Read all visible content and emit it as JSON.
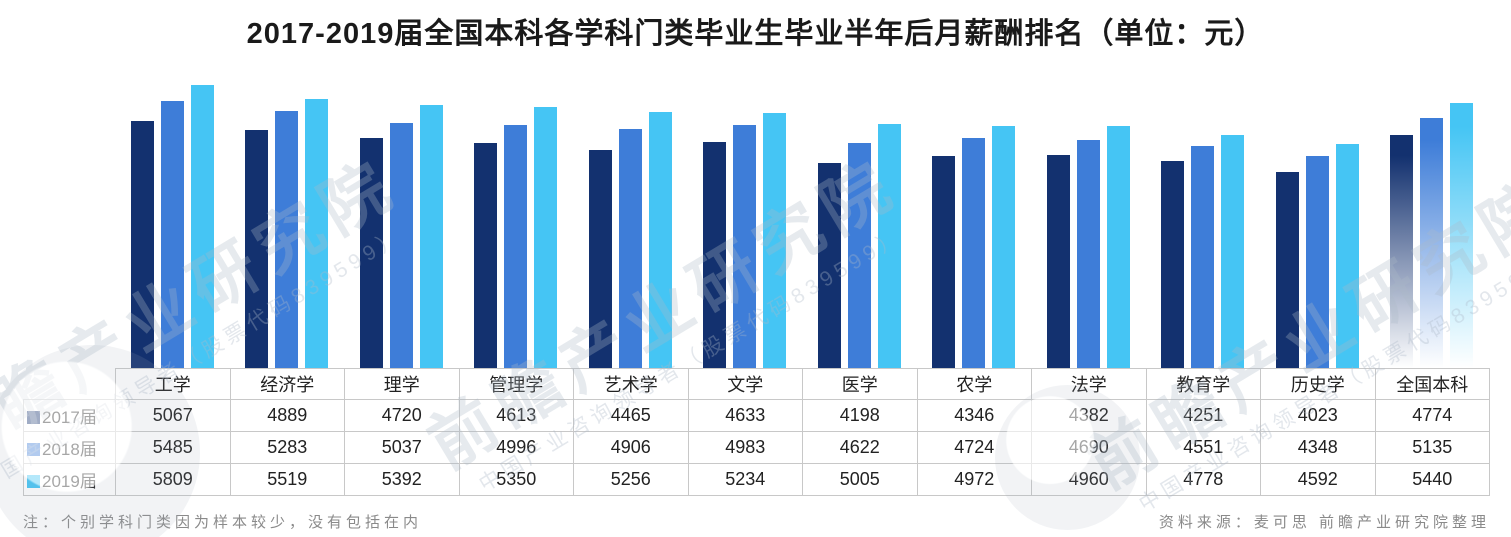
{
  "title": "2017-2019届全国本科各学科门类毕业生毕业半年后月薪酬排名（单位：元）",
  "chart_data": {
    "type": "bar",
    "categories": [
      "工学",
      "经济学",
      "理学",
      "管理学",
      "艺术学",
      "文学",
      "医学",
      "农学",
      "法学",
      "教育学",
      "历史学",
      "全国本科"
    ],
    "series": [
      {
        "name": "2017届",
        "color": "#13316f",
        "values": [
          5067,
          4889,
          4720,
          4613,
          4465,
          4633,
          4198,
          4346,
          4382,
          4251,
          4023,
          4774
        ]
      },
      {
        "name": "2018届",
        "color": "#3e7dd8",
        "values": [
          5485,
          5283,
          5037,
          4996,
          4906,
          4983,
          4622,
          4724,
          4690,
          4551,
          4348,
          5135
        ]
      },
      {
        "name": "2019届",
        "color": "#45c5f4",
        "values": [
          5809,
          5519,
          5392,
          5350,
          5256,
          5234,
          5005,
          4972,
          4960,
          4778,
          4592,
          5440
        ]
      }
    ],
    "highlight_category": "全国本科",
    "ylim": [
      0,
      5809
    ],
    "grid": false,
    "legend_position": "table-left-column",
    "value_table_shown": true
  },
  "footer": {
    "note": "注：个别学科门类因为样本较少，没有包括在内",
    "source": "资料来源：麦可思 前瞻产业研究院整理"
  },
  "watermark": {
    "text": "前瞻产业研究院",
    "subtext": "中国产业咨询领导者（股票代码839599）"
  }
}
